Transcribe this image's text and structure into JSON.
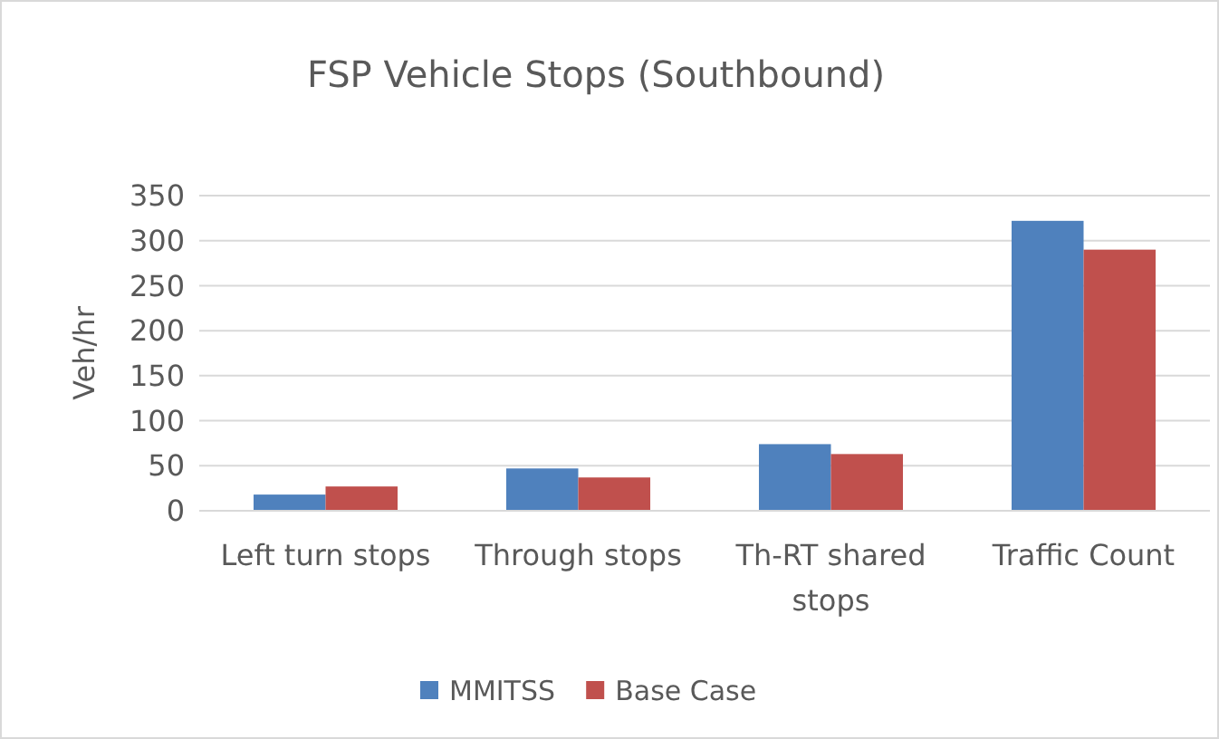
{
  "chart_data": {
    "type": "bar",
    "title": "FSP Vehicle Stops (Southbound)",
    "ylabel": "Veh/hr",
    "categories": [
      "Left turn stops",
      "Through stops",
      "Th-RT shared stops",
      "Traffic Count"
    ],
    "series": [
      {
        "name": "MMITSS",
        "color": "#4f81bd",
        "values": [
          18,
          47,
          74,
          322
        ]
      },
      {
        "name": "Base Case",
        "color": "#c0504d",
        "values": [
          27,
          37,
          63,
          290
        ]
      }
    ],
    "ylim": [
      0,
      350
    ],
    "yticks": [
      0,
      50,
      100,
      150,
      200,
      250,
      300,
      350
    ],
    "grid": "y",
    "legend": "bottom"
  }
}
